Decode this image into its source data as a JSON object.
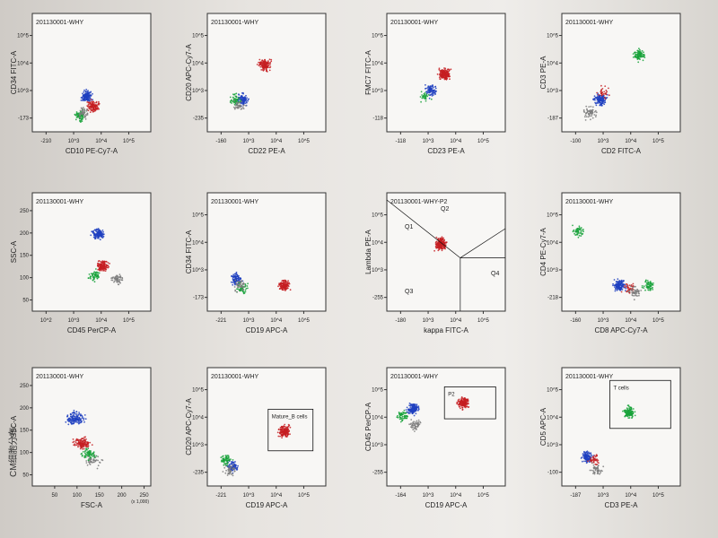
{
  "page": {
    "heading": "CM细胞分布:"
  },
  "chart_data": [
    {
      "type": "scatter",
      "title": "201130001-WHY",
      "xlabel": "FSC-A",
      "ylabel": "SSC-A",
      "xticks": [
        "50",
        "100",
        "150",
        "200",
        "250"
      ],
      "yticks": [
        "50",
        "100",
        "150",
        "200",
        "250"
      ],
      "scale_note": "(x 1,000)",
      "grid": false,
      "populations": [
        {
          "color": "#1f3fbf",
          "x": 95,
          "y": 150,
          "n": 140
        },
        {
          "color": "#c61f22",
          "x": 110,
          "y": 95,
          "n": 120
        },
        {
          "color": "#17a23a",
          "x": 125,
          "y": 70,
          "n": 70
        },
        {
          "color": "#7d7d7d",
          "x": 135,
          "y": 55,
          "n": 40
        }
      ],
      "gates": []
    },
    {
      "type": "scatter",
      "title": "201130001-WHY",
      "xlabel": "CD45 PerCP-A",
      "ylabel": "SSC-A",
      "xticks": [
        "10^2",
        "10^3",
        "10^4",
        "10^5"
      ],
      "yticks": [
        "50",
        "100",
        "150",
        "200",
        "250"
      ],
      "grid": false,
      "populations": [
        {
          "color": "#1f3fbf",
          "x": 3.55,
          "y": 170,
          "n": 130
        },
        {
          "color": "#c61f22",
          "x": 3.7,
          "y": 100,
          "n": 130
        },
        {
          "color": "#17a23a",
          "x": 3.45,
          "y": 80,
          "n": 60
        },
        {
          "color": "#7d7d7d",
          "x": 4.15,
          "y": 70,
          "n": 60
        }
      ],
      "gates": []
    },
    {
      "type": "scatter",
      "title": "201130001-WHY",
      "xlabel": "CD10 PE-Cy7-A",
      "ylabel": "CD34 FITC-A",
      "xticks": [
        "-210",
        "10^3",
        "10^4",
        "10^5"
      ],
      "yticks": [
        "-173",
        "10^3",
        "10^4",
        "10^5"
      ],
      "grid": false,
      "populations": [
        {
          "color": "#1f3fbf",
          "x": 3.2,
          "y": 2.6,
          "n": 140
        },
        {
          "color": "#c61f22",
          "x": 3.4,
          "y": 2.3,
          "n": 130
        },
        {
          "color": "#17a23a",
          "x": 3.0,
          "y": 2.0,
          "n": 70
        },
        {
          "color": "#7d7d7d",
          "x": 3.1,
          "y": 2.1,
          "n": 40
        }
      ],
      "gates": []
    },
    {
      "type": "scatter",
      "title": "201130001-WHY",
      "xlabel": "CD19 APC-A",
      "ylabel": "CD20 APC-Cy7-A",
      "xticks": [
        "-221",
        "10^3",
        "10^4",
        "10^5"
      ],
      "yticks": [
        "-235",
        "10^3",
        "10^4",
        "10^5"
      ],
      "grid": false,
      "populations": [
        {
          "color": "#c61f22",
          "x": 3.9,
          "y": 3.2,
          "n": 160
        },
        {
          "color": "#1f3fbf",
          "x": 2.3,
          "y": 2.1,
          "n": 80
        },
        {
          "color": "#17a23a",
          "x": 2.1,
          "y": 2.3,
          "n": 60
        },
        {
          "color": "#7d7d7d",
          "x": 2.2,
          "y": 2.0,
          "n": 40
        }
      ],
      "gates": [
        {
          "label": "Mature_B cells",
          "x0": 3.4,
          "x1": 4.8,
          "y0": 2.6,
          "y1": 3.9
        }
      ]
    },
    {
      "type": "scatter",
      "title": "201130001-WHY",
      "xlabel": "CD19 APC-A",
      "ylabel": "CD34 FITC-A",
      "xticks": [
        "-221",
        "10^3",
        "10^4",
        "10^5"
      ],
      "yticks": [
        "-173",
        "10^3",
        "10^4",
        "10^5"
      ],
      "grid": false,
      "populations": [
        {
          "color": "#c61f22",
          "x": 3.9,
          "y": 2.3,
          "n": 140
        },
        {
          "color": "#1f3fbf",
          "x": 2.4,
          "y": 2.5,
          "n": 90
        },
        {
          "color": "#17a23a",
          "x": 2.6,
          "y": 2.2,
          "n": 50
        },
        {
          "color": "#7d7d7d",
          "x": 2.5,
          "y": 2.3,
          "n": 40
        }
      ],
      "gates": []
    },
    {
      "type": "scatter",
      "title": "201130001-WHY",
      "xlabel": "CD22 PE-A",
      "ylabel": "CD20 APC-Cy7-A",
      "xticks": [
        "-160",
        "10^3",
        "10^4",
        "10^5"
      ],
      "yticks": [
        "-235",
        "10^3",
        "10^4",
        "10^5"
      ],
      "grid": false,
      "populations": [
        {
          "color": "#c61f22",
          "x": 3.3,
          "y": 3.6,
          "n": 150
        },
        {
          "color": "#1f3fbf",
          "x": 2.6,
          "y": 2.5,
          "n": 90
        },
        {
          "color": "#17a23a",
          "x": 2.4,
          "y": 2.5,
          "n": 50
        },
        {
          "color": "#7d7d7d",
          "x": 2.5,
          "y": 2.3,
          "n": 40
        }
      ],
      "gates": []
    },
    {
      "type": "scatter",
      "title": "201130001-WHY",
      "xlabel": "CD19 APC-A",
      "ylabel": "CD45 PerCP-A",
      "xticks": [
        "-164",
        "10^3",
        "10^4",
        "10^5"
      ],
      "yticks": [
        "-255",
        "10^3",
        "10^4",
        "10^5"
      ],
      "grid": false,
      "populations": [
        {
          "color": "#c61f22",
          "x": 3.9,
          "y": 4.1,
          "n": 160
        },
        {
          "color": "#1f3fbf",
          "x": 2.3,
          "y": 3.9,
          "n": 120
        },
        {
          "color": "#17a23a",
          "x": 2.0,
          "y": 3.7,
          "n": 60
        },
        {
          "color": "#7d7d7d",
          "x": 2.4,
          "y": 3.4,
          "n": 50
        }
      ],
      "gates": [
        {
          "label": "P2",
          "x0": 3.3,
          "x1": 4.9,
          "y0": 3.6,
          "y1": 4.6
        }
      ]
    },
    {
      "type": "scatter",
      "title": "201130001-WHY-P2",
      "xlabel": "kappa FITC-A",
      "ylabel": "Lambda PE-A",
      "xticks": [
        "-180",
        "10^3",
        "10^4",
        "10^5"
      ],
      "yticks": [
        "-255",
        "10^3",
        "10^4",
        "10^5"
      ],
      "grid": false,
      "populations": [
        {
          "color": "#c61f22",
          "x": 3.2,
          "y": 3.6,
          "n": 220
        }
      ],
      "gates": [],
      "quadrants": [
        "Q1",
        "Q2",
        "Q3",
        "Q4"
      ]
    },
    {
      "type": "scatter",
      "title": "201130001-WHY",
      "xlabel": "CD23 PE-A",
      "ylabel": "FMC7 FITC-A",
      "xticks": [
        "-118",
        "10^3",
        "10^4",
        "10^5"
      ],
      "yticks": [
        "-118",
        "10^3",
        "10^4",
        "10^5"
      ],
      "grid": false,
      "populations": [
        {
          "color": "#c61f22",
          "x": 3.3,
          "y": 3.3,
          "n": 200
        },
        {
          "color": "#1f3fbf",
          "x": 2.9,
          "y": 2.8,
          "n": 80
        },
        {
          "color": "#17a23a",
          "x": 2.7,
          "y": 2.6,
          "n": 30
        }
      ],
      "gates": []
    },
    {
      "type": "scatter",
      "title": "201130001-WHY",
      "xlabel": "CD3 PE-A",
      "ylabel": "CD5 APC-A",
      "xticks": [
        "-187",
        "10^3",
        "10^4",
        "10^5"
      ],
      "yticks": [
        "-100",
        "10^3",
        "10^4",
        "10^5"
      ],
      "grid": false,
      "populations": [
        {
          "color": "#17a23a",
          "x": 3.6,
          "y": 3.8,
          "n": 120
        },
        {
          "color": "#1f3fbf",
          "x": 2.3,
          "y": 2.4,
          "n": 110
        },
        {
          "color": "#c61f22",
          "x": 2.5,
          "y": 2.3,
          "n": 40
        },
        {
          "color": "#7d7d7d",
          "x": 2.6,
          "y": 2.0,
          "n": 50
        }
      ],
      "gates": [
        {
          "label": "T cells",
          "x0": 3.0,
          "x1": 4.9,
          "y0": 3.3,
          "y1": 4.8
        }
      ]
    },
    {
      "type": "scatter",
      "title": "201130001-WHY",
      "xlabel": "CD8 APC-Cy7-A",
      "ylabel": "CD4 PE-Cy7-A",
      "xticks": [
        "-160",
        "10^3",
        "10^4",
        "10^5"
      ],
      "yticks": [
        "-218",
        "10^3",
        "10^4",
        "10^5"
      ],
      "grid": false,
      "populations": [
        {
          "color": "#17a23a",
          "x": 4.2,
          "y": 2.3,
          "n": 60
        },
        {
          "color": "#17a23a",
          "x": 2.0,
          "y": 4.0,
          "n": 50
        },
        {
          "color": "#1f3fbf",
          "x": 3.3,
          "y": 2.3,
          "n": 130
        },
        {
          "color": "#c61f22",
          "x": 3.6,
          "y": 2.2,
          "n": 40
        },
        {
          "color": "#7d7d7d",
          "x": 3.8,
          "y": 2.1,
          "n": 50
        }
      ],
      "gates": []
    },
    {
      "type": "scatter",
      "title": "201130001-WHY",
      "xlabel": "CD2 FITC-A",
      "ylabel": "CD3 PE-A",
      "xticks": [
        "-100",
        "10^3",
        "10^4",
        "10^5"
      ],
      "yticks": [
        "-187",
        "10^3",
        "10^4",
        "10^5"
      ],
      "grid": false,
      "populations": [
        {
          "color": "#17a23a",
          "x": 3.9,
          "y": 3.9,
          "n": 90
        },
        {
          "color": "#1f3fbf",
          "x": 2.7,
          "y": 2.5,
          "n": 130
        },
        {
          "color": "#7d7d7d",
          "x": 2.4,
          "y": 2.1,
          "n": 60
        },
        {
          "color": "#c61f22",
          "x": 2.8,
          "y": 2.7,
          "n": 30
        }
      ],
      "gates": []
    }
  ]
}
